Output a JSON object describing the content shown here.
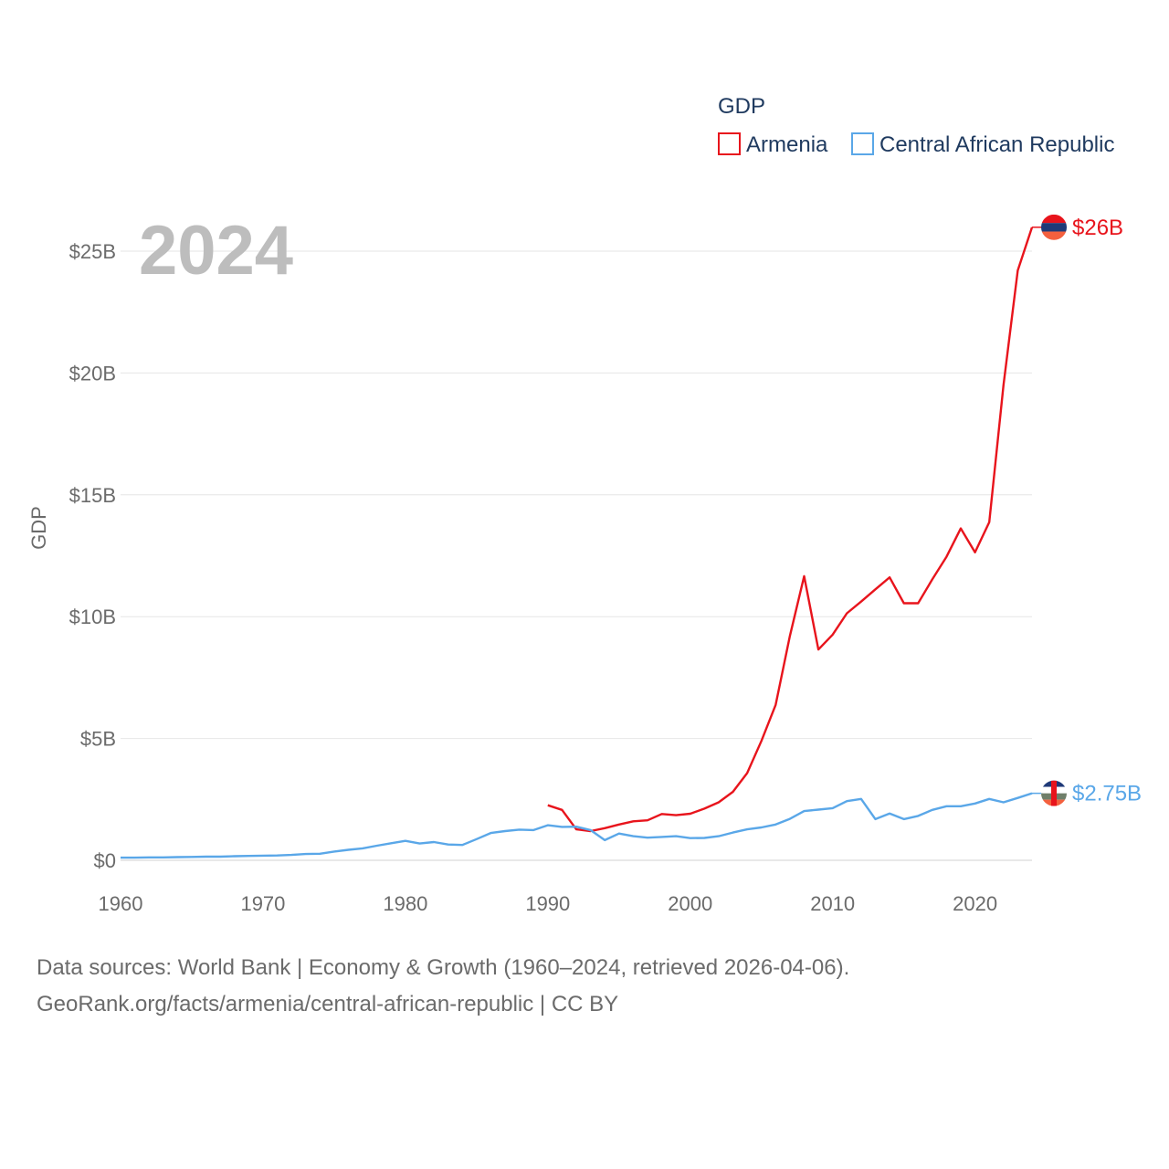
{
  "chart_data": {
    "type": "line",
    "legend_title": "GDP",
    "ylabel": "GDP",
    "year_label": "2024",
    "xlim": [
      1960,
      2024
    ],
    "ylim": [
      0,
      27
    ],
    "x_ticks": [
      1960,
      1970,
      1980,
      1990,
      2000,
      2010,
      2020
    ],
    "x_tick_labels": [
      "1960",
      "1970",
      "1980",
      "1990",
      "2000",
      "2010",
      "2020"
    ],
    "y_ticks": [
      0,
      5,
      10,
      15,
      20,
      25
    ],
    "y_tick_labels": [
      "$0",
      "$5B",
      "$10B",
      "$15B",
      "$20B",
      "$25B"
    ],
    "grid": true,
    "legend_position": "top-right",
    "series": [
      {
        "name": "Armenia",
        "color": "#e8141c",
        "end_label": "$26B",
        "x": [
          1990,
          1991,
          1992,
          1993,
          1994,
          1995,
          1996,
          1997,
          1998,
          1999,
          2000,
          2001,
          2002,
          2003,
          2004,
          2005,
          2006,
          2007,
          2008,
          2009,
          2010,
          2011,
          2012,
          2013,
          2014,
          2015,
          2016,
          2017,
          2018,
          2019,
          2020,
          2021,
          2022,
          2023,
          2024
        ],
        "values": [
          2.26,
          2.07,
          1.27,
          1.2,
          1.32,
          1.47,
          1.6,
          1.64,
          1.9,
          1.85,
          1.91,
          2.12,
          2.38,
          2.81,
          3.58,
          4.9,
          6.38,
          9.21,
          11.66,
          8.65,
          9.26,
          10.14,
          10.62,
          11.12,
          11.61,
          10.55,
          10.55,
          11.53,
          12.46,
          13.62,
          12.64,
          13.88,
          19.51,
          24.21,
          25.98
        ]
      },
      {
        "name": "Central African Republic",
        "color": "#5aa7e8",
        "end_label": "$2.75B",
        "x": [
          1960,
          1961,
          1962,
          1963,
          1964,
          1965,
          1966,
          1967,
          1968,
          1969,
          1970,
          1971,
          1972,
          1973,
          1974,
          1975,
          1976,
          1977,
          1978,
          1979,
          1980,
          1981,
          1982,
          1983,
          1984,
          1985,
          1986,
          1987,
          1988,
          1989,
          1990,
          1991,
          1992,
          1993,
          1994,
          1995,
          1996,
          1997,
          1998,
          1999,
          2000,
          2001,
          2002,
          2003,
          2004,
          2005,
          2006,
          2007,
          2008,
          2009,
          2010,
          2011,
          2012,
          2013,
          2014,
          2015,
          2016,
          2017,
          2018,
          2019,
          2020,
          2021,
          2022,
          2023,
          2024
        ],
        "values": [
          0.11,
          0.11,
          0.12,
          0.12,
          0.13,
          0.14,
          0.15,
          0.15,
          0.17,
          0.18,
          0.19,
          0.2,
          0.22,
          0.26,
          0.27,
          0.36,
          0.43,
          0.49,
          0.6,
          0.7,
          0.8,
          0.69,
          0.75,
          0.65,
          0.63,
          0.87,
          1.12,
          1.2,
          1.26,
          1.24,
          1.44,
          1.37,
          1.38,
          1.24,
          0.83,
          1.1,
          0.99,
          0.93,
          0.96,
          0.99,
          0.91,
          0.92,
          0.99,
          1.14,
          1.27,
          1.35,
          1.47,
          1.7,
          2.02,
          2.08,
          2.14,
          2.43,
          2.52,
          1.69,
          1.92,
          1.69,
          1.82,
          2.07,
          2.22,
          2.22,
          2.33,
          2.52,
          2.38,
          2.56,
          2.75
        ]
      }
    ]
  },
  "source_line_1": "Data sources: World Bank | Economy & Growth (1960–2024, retrieved 2026-04-06).",
  "source_line_2": "GeoRank.org/facts/armenia/central-african-republic | CC BY"
}
